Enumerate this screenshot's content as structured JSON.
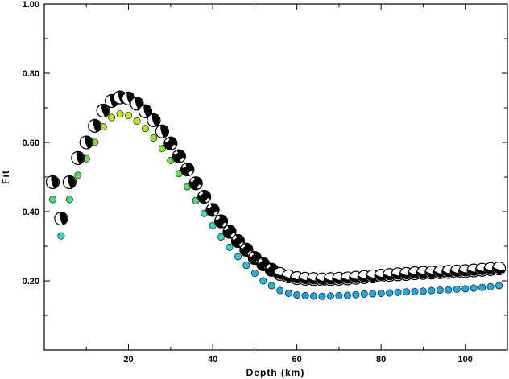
{
  "chart_data": {
    "type": "scatter",
    "title": "",
    "xlabel": "Depth (km)",
    "ylabel": "Fit",
    "xlim": [
      0,
      110
    ],
    "ylim": [
      0,
      1.0
    ],
    "xticks": [
      20,
      40,
      60,
      80,
      100
    ],
    "xtick_labels": [
      "20",
      "40",
      "60",
      "80",
      "100"
    ],
    "yticks": [
      0.2,
      0.4,
      0.6,
      0.8,
      1.0
    ],
    "ytick_labels": [
      "0.20",
      "0.40",
      "0.60",
      "0.80",
      "1.00"
    ],
    "grid": false,
    "legend": "none",
    "series": [
      {
        "marker": "focal-mechanism beachball",
        "x": [
          2,
          4,
          6,
          8,
          10,
          12,
          14,
          16,
          18,
          20,
          22,
          24,
          26,
          28,
          30,
          32,
          34,
          36,
          38,
          40,
          42,
          44,
          46,
          48,
          50,
          52,
          54,
          56,
          58,
          60,
          62,
          64,
          66,
          68,
          70,
          72,
          74,
          76,
          78,
          80,
          82,
          84,
          86,
          88,
          90,
          92,
          94,
          96,
          98,
          100,
          102,
          104,
          106,
          108
        ],
        "values": [
          0.485,
          0.38,
          0.485,
          0.555,
          0.6,
          0.648,
          0.692,
          0.72,
          0.73,
          0.727,
          0.712,
          0.69,
          0.664,
          0.632,
          0.597,
          0.56,
          0.522,
          0.482,
          0.443,
          0.405,
          0.372,
          0.342,
          0.315,
          0.29,
          0.266,
          0.248,
          0.232,
          0.22,
          0.213,
          0.208,
          0.206,
          0.205,
          0.204,
          0.205,
          0.206,
          0.207,
          0.209,
          0.211,
          0.213,
          0.215,
          0.217,
          0.219,
          0.22,
          0.222,
          0.223,
          0.224,
          0.225,
          0.226,
          0.227,
          0.228,
          0.23,
          0.232,
          0.234,
          0.236
        ]
      },
      {
        "marker": "small filled circle",
        "x": [
          2,
          4,
          6,
          8,
          10,
          12,
          14,
          16,
          18,
          20,
          22,
          24,
          26,
          28,
          30,
          32,
          34,
          36,
          38,
          40,
          42,
          44,
          46,
          48,
          50,
          52,
          54,
          56,
          58,
          60,
          62,
          64,
          66,
          68,
          70,
          72,
          74,
          76,
          78,
          80,
          82,
          84,
          86,
          88,
          90,
          92,
          94,
          96,
          98,
          100,
          102,
          104,
          106,
          108
        ],
        "values": [
          0.435,
          0.33,
          0.435,
          0.505,
          0.553,
          0.6,
          0.645,
          0.672,
          0.682,
          0.678,
          0.662,
          0.64,
          0.613,
          0.582,
          0.548,
          0.51,
          0.472,
          0.432,
          0.395,
          0.36,
          0.327,
          0.297,
          0.27,
          0.245,
          0.222,
          0.2,
          0.186,
          0.172,
          0.164,
          0.159,
          0.157,
          0.156,
          0.155,
          0.156,
          0.157,
          0.158,
          0.16,
          0.162,
          0.163,
          0.164,
          0.165,
          0.167,
          0.168,
          0.169,
          0.17,
          0.172,
          0.173,
          0.174,
          0.176,
          0.177,
          0.179,
          0.181,
          0.183,
          0.186
        ]
      }
    ]
  }
}
